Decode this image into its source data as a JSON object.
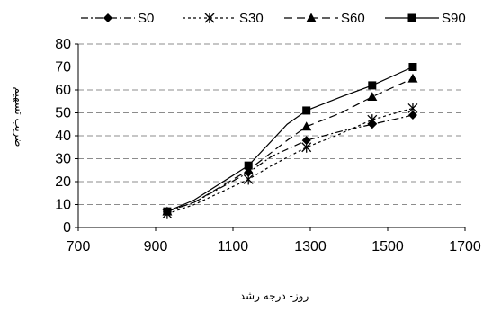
{
  "chart_data": {
    "type": "line",
    "xlabel": "روز- درجه رشد",
    "ylabel": "ضریب تسهیم",
    "xlim": [
      700,
      1700
    ],
    "ylim": [
      0,
      80
    ],
    "xticks": [
      700,
      900,
      1100,
      1300,
      1500,
      1700
    ],
    "yticks": [
      0,
      10,
      20,
      30,
      40,
      50,
      60,
      70,
      80
    ],
    "grid": "horizontal-dashed",
    "legend": "top",
    "series": [
      {
        "name": "S0",
        "marker": "diamond",
        "dash": "dash-dot",
        "x": [
          930,
          1000,
          1140,
          1200,
          1290,
          1380,
          1460,
          1565
        ],
        "y": [
          7,
          11,
          24,
          31,
          38,
          42,
          45,
          49
        ]
      },
      {
        "name": "S30",
        "marker": "asterisk",
        "dash": "dotted",
        "x": [
          930,
          1000,
          1140,
          1200,
          1290,
          1380,
          1460,
          1565
        ],
        "y": [
          6,
          10,
          21,
          27,
          35,
          41,
          47,
          52
        ]
      },
      {
        "name": "S60",
        "marker": "triangle",
        "dash": "dashed",
        "x": [
          930,
          1000,
          1140,
          1240,
          1290,
          1380,
          1460,
          1565
        ],
        "y": [
          7,
          11,
          25,
          38,
          44,
          50,
          57,
          65
        ]
      },
      {
        "name": "S90",
        "marker": "square",
        "dash": "solid",
        "x": [
          930,
          1000,
          1140,
          1240,
          1290,
          1380,
          1460,
          1565
        ],
        "y": [
          7,
          12,
          27,
          45,
          51,
          57,
          62,
          70
        ]
      }
    ]
  }
}
